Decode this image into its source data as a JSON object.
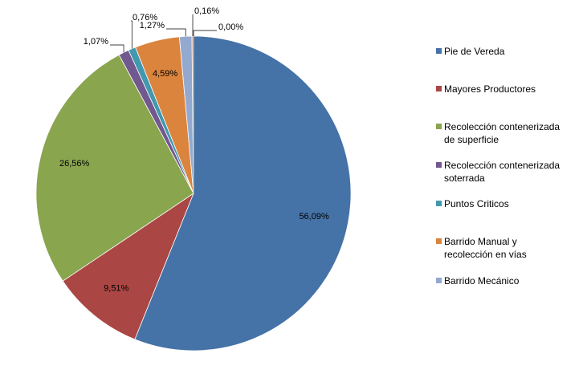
{
  "chart_data": {
    "type": "pie",
    "categories": [
      "Pie de Vereda",
      "Mayores Productores",
      "Recolección contenerizada de superficie",
      "Recolección contenerizada soterrada",
      "Puntos Criticos",
      "Barrido Manual y recolección en vías",
      "Barrido Mecánico",
      null,
      null
    ],
    "values": [
      56.09,
      9.51,
      26.56,
      1.07,
      0.76,
      4.59,
      1.27,
      0.16,
      0.0
    ],
    "value_labels": [
      "56,09%",
      "9,51%",
      "26,56%",
      "1,07%",
      "0,76%",
      "4,59%",
      "1,27%",
      "0,16%",
      "0,00%"
    ],
    "colors": [
      "#4572a7",
      "#aa4643",
      "#89a54e",
      "#71588f",
      "#4198af",
      "#db843d",
      "#93a9cf",
      "#d19392",
      "#b9cd96"
    ],
    "legend": "right"
  }
}
